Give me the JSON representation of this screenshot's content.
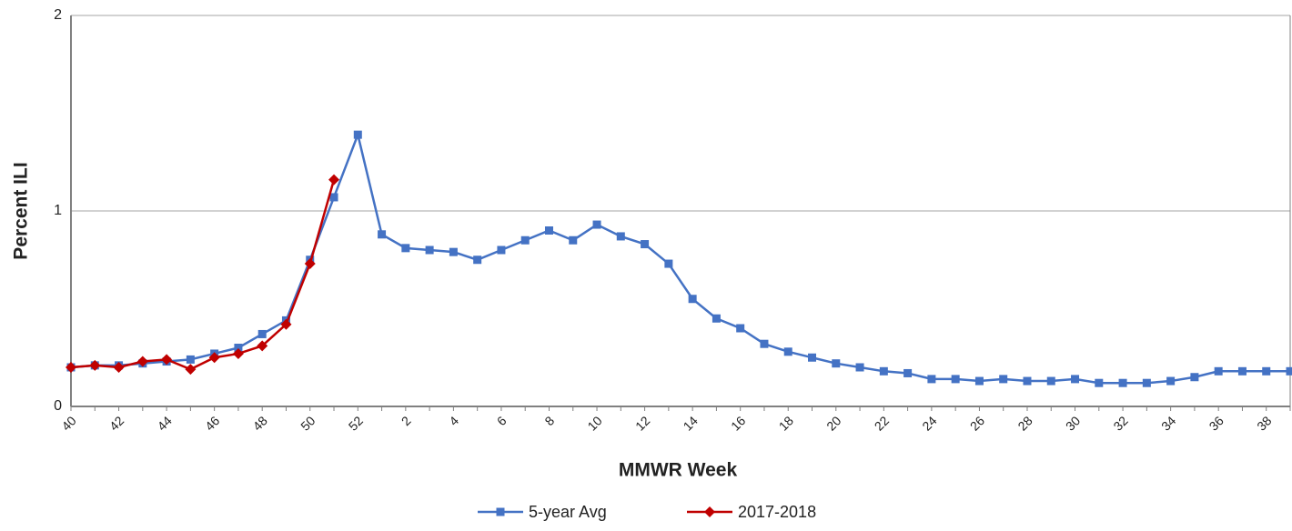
{
  "chart_data": {
    "type": "line",
    "x_label": "MMWR Week",
    "y_label": "Percent ILI",
    "categories": [
      "40",
      null,
      "42",
      null,
      "44",
      null,
      "46",
      null,
      "48",
      null,
      "50",
      null,
      "52",
      null,
      "2",
      null,
      "4",
      null,
      "6",
      null,
      "8",
      null,
      "10",
      null,
      "12",
      null,
      "14",
      null,
      "16",
      null,
      "18",
      null,
      "20",
      null,
      "22",
      null,
      "24",
      null,
      "26",
      null,
      "28",
      null,
      "30",
      null,
      "32",
      null,
      "34",
      null,
      "36",
      null,
      "38",
      null
    ],
    "series": [
      {
        "name": "5-year Avg",
        "color": "#4472c4",
        "marker": "square",
        "values": [
          0.2,
          0.21,
          0.21,
          0.22,
          0.23,
          0.24,
          0.27,
          0.3,
          0.37,
          0.44,
          0.75,
          1.07,
          1.39,
          0.88,
          0.81,
          0.8,
          0.79,
          0.75,
          0.8,
          0.85,
          0.9,
          0.85,
          0.93,
          0.87,
          0.83,
          0.73,
          0.55,
          0.45,
          0.4,
          0.32,
          0.28,
          0.25,
          0.22,
          0.2,
          0.18,
          0.17,
          0.14,
          0.14,
          0.13,
          0.14,
          0.13,
          0.13,
          0.14,
          0.12,
          0.12,
          0.12,
          0.13,
          0.15,
          0.18,
          0.18,
          0.18,
          0.18
        ]
      },
      {
        "name": "2017-2018",
        "color": "#c00000",
        "marker": "diamond",
        "values": [
          0.2,
          0.21,
          0.2,
          0.23,
          0.24,
          0.19,
          0.25,
          0.27,
          0.31,
          0.42,
          0.73,
          1.16,
          null,
          null,
          null,
          null,
          null,
          null,
          null,
          null,
          null,
          null,
          null,
          null,
          null,
          null,
          null,
          null,
          null,
          null,
          null,
          null,
          null,
          null,
          null,
          null,
          null,
          null,
          null,
          null,
          null,
          null,
          null,
          null,
          null,
          null,
          null,
          null,
          null,
          null,
          null,
          null
        ]
      }
    ],
    "ylim": [
      0,
      2
    ],
    "yticks": [
      0,
      1,
      2
    ],
    "grid": true,
    "legend": "bottom"
  }
}
